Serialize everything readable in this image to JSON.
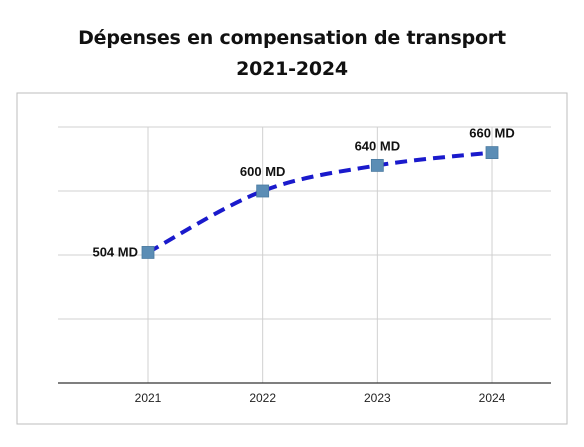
{
  "chart_data": {
    "type": "line",
    "title": "Dépenses en compensation de transport",
    "subtitle": "2021-2024",
    "categories": [
      "2021",
      "2022",
      "2023",
      "2024"
    ],
    "series": [
      {
        "values": [
          504,
          600,
          640,
          660
        ],
        "labels": [
          "504 MD",
          "600 MD",
          "640 MD",
          "660 MD"
        ],
        "color": "#1a1acc",
        "line_style": "dashed",
        "marker": "square",
        "marker_color": "#5b8db5"
      }
    ],
    "xlabel": "",
    "ylabel": "",
    "ylim": [
      300,
      700
    ],
    "yticks": [
      400,
      500,
      600,
      700
    ],
    "grid": true,
    "y_tick_labels_shown": false
  }
}
